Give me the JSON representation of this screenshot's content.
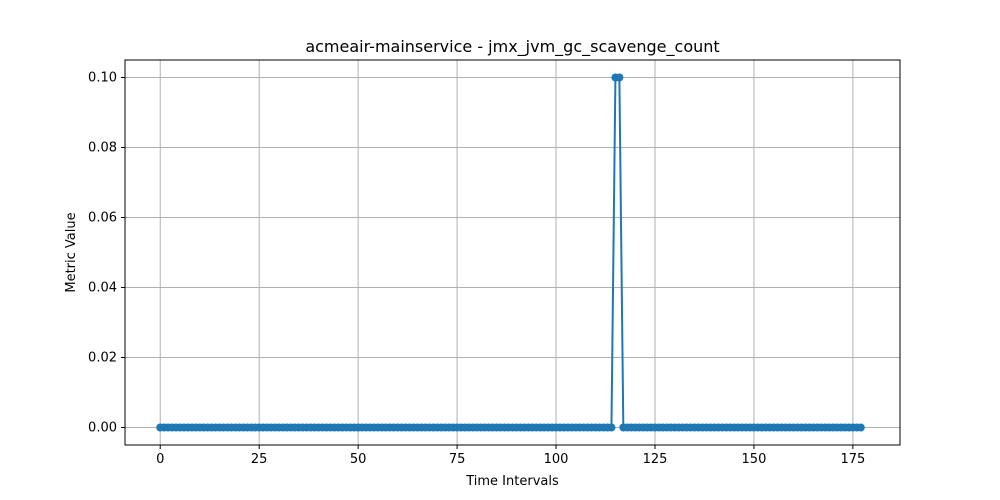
{
  "chart_data": {
    "type": "line",
    "title": "acmeair-mainservice - jmx_jvm_gc_scavenge_count",
    "xlabel": "Time Intervals",
    "ylabel": "Metric Value",
    "xlim": [
      -8.9,
      186.9
    ],
    "ylim": [
      -0.005,
      0.105
    ],
    "x_ticks": [
      0,
      25,
      50,
      75,
      100,
      125,
      150,
      175
    ],
    "y_ticks": [
      0.0,
      0.02,
      0.04,
      0.06,
      0.08,
      0.1
    ],
    "x_tick_labels": [
      "0",
      "25",
      "50",
      "75",
      "100",
      "125",
      "150",
      "175"
    ],
    "y_tick_labels": [
      "0.00",
      "0.02",
      "0.04",
      "0.06",
      "0.08",
      "0.10"
    ],
    "grid": true,
    "marker": "circle",
    "series": [
      {
        "color": "#1f77b4",
        "x_start": 0,
        "x_end": 177,
        "default_value": 0,
        "nonzero_points": [
          {
            "x": 115,
            "y": 0.1
          },
          {
            "x": 116,
            "y": 0.1
          }
        ]
      }
    ]
  }
}
